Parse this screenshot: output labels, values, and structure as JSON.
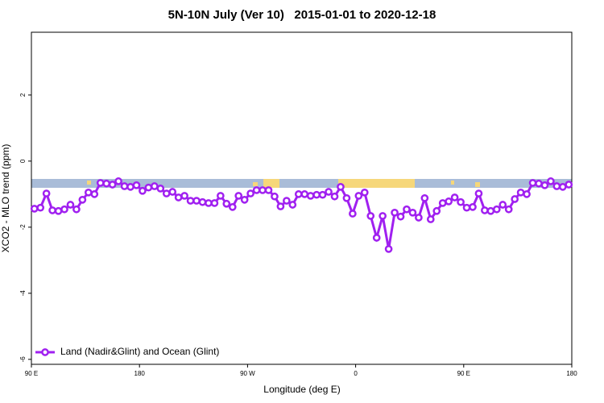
{
  "chart_data": {
    "type": "line",
    "title": "5N-10N July (Ver 10)   2015-01-01 to 2020-12-18",
    "x_label": "Longitude (deg E)",
    "y_label": "XCO2 - MLO trend (ppm)",
    "xlim": [
      90,
      540
    ],
    "ylim": [
      -6.15,
      3.9
    ],
    "xticks": [
      {
        "value": 90,
        "label": "90 E"
      },
      180,
      {
        "value": 270,
        "label": "90 W"
      },
      {
        "value": 360,
        "label": "0"
      },
      {
        "value": 450,
        "label": "90 E"
      },
      {
        "value": 540,
        "label": "180"
      }
    ],
    "yticks": [
      2,
      0,
      -2,
      -4,
      -6
    ],
    "grid": false,
    "legend": "bottom-left",
    "x": [
      92.5,
      97.5,
      102.5,
      107.5,
      112.5,
      117.5,
      122.5,
      127.5,
      132.5,
      137.5,
      142.5,
      147.5,
      152.5,
      157.5,
      162.5,
      167.5,
      172.5,
      177.5,
      182.5,
      187.5,
      192.5,
      197.5,
      202.5,
      207.5,
      212.5,
      217.5,
      222.5,
      227.5,
      232.5,
      237.5,
      242.5,
      247.5,
      252.5,
      257.5,
      262.5,
      267.5,
      272.5,
      277.5,
      282.5,
      287.5,
      292.5,
      297.5,
      302.5,
      307.5,
      312.5,
      317.5,
      322.5,
      327.5,
      332.5,
      337.5,
      342.5,
      347.5,
      352.5,
      357.5,
      362.5,
      367.5,
      372.5,
      377.5,
      382.5,
      387.5,
      392.5,
      397.5,
      402.5,
      407.5,
      412.5,
      417.5,
      422.5,
      427.5,
      432.5,
      437.5,
      442.5,
      447.5,
      452.5,
      457.5,
      462.5,
      467.5,
      472.5,
      477.5,
      482.5,
      487.5,
      492.5,
      497.5,
      502.5,
      507.5,
      512.5,
      517.5,
      522.5,
      527.5,
      532.5,
      537.5
    ],
    "series": [
      {
        "name": "Land (Nadir&Glint) and Ocean (Glint)",
        "color": "#a020f0",
        "values": [
          -1.44,
          -1.41,
          -0.98,
          -1.49,
          -1.51,
          -1.46,
          -1.32,
          -1.46,
          -1.17,
          -0.95,
          -1.0,
          -0.66,
          -0.68,
          -0.71,
          -0.61,
          -0.76,
          -0.78,
          -0.73,
          -0.9,
          -0.8,
          -0.76,
          -0.83,
          -0.98,
          -0.93,
          -1.1,
          -1.05,
          -1.2,
          -1.2,
          -1.24,
          -1.27,
          -1.27,
          -1.05,
          -1.29,
          -1.39,
          -1.05,
          -1.17,
          -0.98,
          -0.88,
          -0.88,
          -0.88,
          -1.07,
          -1.37,
          -1.2,
          -1.32,
          -1.0,
          -1.0,
          -1.05,
          -1.02,
          -1.02,
          -0.93,
          -1.07,
          -0.78,
          -1.12,
          -1.59,
          -1.05,
          -0.95,
          -1.66,
          -2.32,
          -1.66,
          -2.66,
          -1.56,
          -1.68,
          -1.46,
          -1.56,
          -1.71,
          -1.12,
          -1.76,
          -1.51,
          -1.27,
          -1.22,
          -1.1,
          -1.24,
          -1.41,
          -1.39,
          -0.98,
          -1.49,
          -1.51,
          -1.46,
          -1.32,
          -1.46,
          -1.15,
          -0.95,
          -1.0,
          -0.66,
          -0.68,
          -0.73,
          -0.61,
          -0.76,
          -0.78,
          -0.71
        ]
      }
    ]
  }
}
